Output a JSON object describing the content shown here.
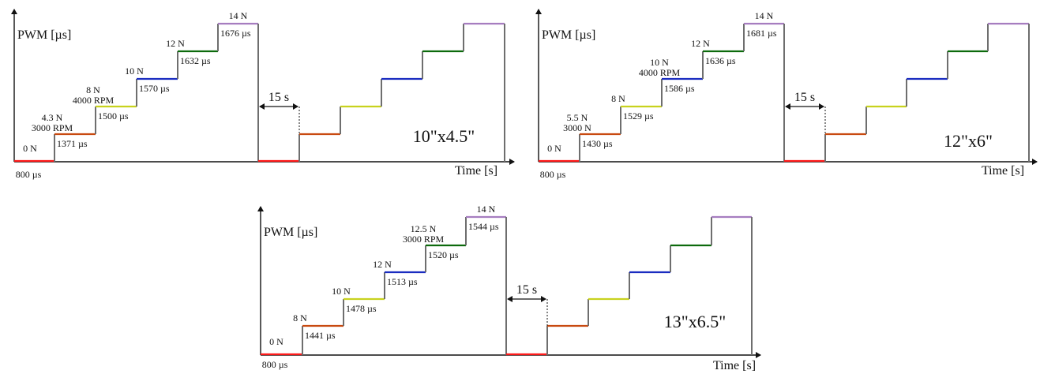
{
  "colors": {
    "axis": "#111111",
    "riser": "#6e6e6e",
    "steps": [
      "#ff1a1a",
      "#c84a10",
      "#c8d21e",
      "#1a2cc0",
      "#0c6a0c",
      "#a67dc0"
    ]
  },
  "panels": [
    {
      "name": "10x4.5",
      "title": "10\"x4.5\"",
      "ylabel": "PWM [µs]",
      "xlabel": "Time [s]",
      "gap_label": "15 s",
      "levels": [
        {
          "thrust": "0 N",
          "rpm": "",
          "pwm": "800 µs"
        },
        {
          "thrust": "4.3 N",
          "rpm": "3000 RPM",
          "pwm": "1371 µs"
        },
        {
          "thrust": "8 N",
          "rpm": "4000 RPM",
          "pwm": "1500 µs"
        },
        {
          "thrust": "10 N",
          "rpm": "",
          "pwm": "1570 µs"
        },
        {
          "thrust": "12 N",
          "rpm": "",
          "pwm": "1632 µs"
        },
        {
          "thrust": "14 N",
          "rpm": "",
          "pwm": "1676 µs"
        }
      ]
    },
    {
      "name": "12x6",
      "title": "12\"x6\"",
      "ylabel": "PWM [µs]",
      "xlabel": "Time [s]",
      "gap_label": "15 s",
      "levels": [
        {
          "thrust": "0 N",
          "rpm": "",
          "pwm": "800 µs"
        },
        {
          "thrust": "5.5 N",
          "rpm": "3000 N",
          "pwm": "1430 µs"
        },
        {
          "thrust": "8 N",
          "rpm": "",
          "pwm": "1529 µs"
        },
        {
          "thrust": "10 N",
          "rpm": "4000 RPM",
          "pwm": "1586 µs"
        },
        {
          "thrust": "12 N",
          "rpm": "",
          "pwm": "1636 µs"
        },
        {
          "thrust": "14 N",
          "rpm": "",
          "pwm": "1681 µs"
        }
      ]
    },
    {
      "name": "13x6.5",
      "title": "13\"x6.5\"",
      "ylabel": "PWM [µs]",
      "xlabel": "Time [s]",
      "gap_label": "15 s",
      "levels": [
        {
          "thrust": "0 N",
          "rpm": "",
          "pwm": "800 µs"
        },
        {
          "thrust": "8 N",
          "rpm": "",
          "pwm": "1441 µs"
        },
        {
          "thrust": "10 N",
          "rpm": "",
          "pwm": "1478 µs"
        },
        {
          "thrust": "12 N",
          "rpm": "",
          "pwm": "1513 µs"
        },
        {
          "thrust": "12.5 N",
          "rpm": "3000 RPM",
          "pwm": "1520 µs"
        },
        {
          "thrust": "14 N",
          "rpm": "",
          "pwm": "1544 µs"
        }
      ]
    }
  ]
}
